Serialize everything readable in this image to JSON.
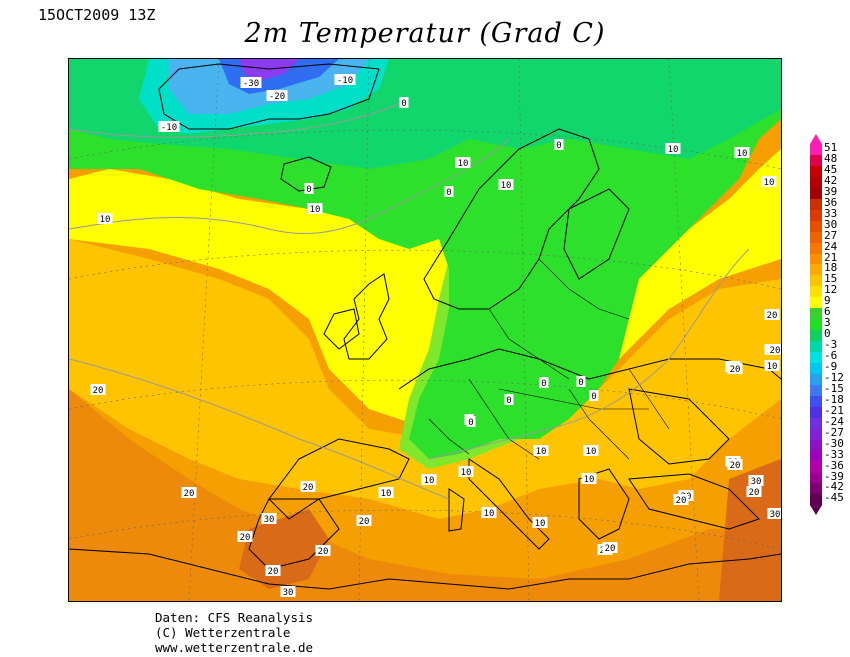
{
  "header": {
    "datetime": "15OCT2009 13Z",
    "title": "2m Temperatur (Grad C)"
  },
  "map": {
    "variable": "2m temperature",
    "unit": "Grad C",
    "colors": {
      "very_cold_purple": "#8c3cf0",
      "cold_blue": "#2f6df2",
      "light_blue": "#49b4f0",
      "cyan": "#00dfc8",
      "teal_green": "#10d66c",
      "green": "#2ce02c",
      "light_green": "#7fe82c",
      "yellow": "#ffff00",
      "yellow_orange": "#ffd400",
      "orange": "#ffb000",
      "dark_orange": "#f08a00",
      "red_orange": "#d86a18"
    },
    "contour_labels": [
      {
        "text": "-30"
      },
      {
        "text": "-20"
      },
      {
        "text": "-10"
      },
      {
        "text": "-10"
      },
      {
        "text": "0"
      },
      {
        "text": "0"
      },
      {
        "text": "0"
      },
      {
        "text": "10"
      },
      {
        "text": "10"
      },
      {
        "text": "10"
      },
      {
        "text": "10"
      },
      {
        "text": "10"
      },
      {
        "text": "0"
      },
      {
        "text": "10"
      },
      {
        "text": "0"
      },
      {
        "text": "0"
      },
      {
        "text": "0"
      },
      {
        "text": "0"
      },
      {
        "text": "0"
      },
      {
        "text": "0"
      },
      {
        "text": "20"
      },
      {
        "text": "20"
      },
      {
        "text": "20"
      },
      {
        "text": "10"
      },
      {
        "text": "10"
      },
      {
        "text": "10"
      },
      {
        "text": "10"
      },
      {
        "text": "10"
      },
      {
        "text": "10"
      },
      {
        "text": "10"
      },
      {
        "text": "20"
      },
      {
        "text": "20"
      },
      {
        "text": "20"
      },
      {
        "text": "20"
      },
      {
        "text": "20"
      },
      {
        "text": "30"
      },
      {
        "text": "20"
      },
      {
        "text": "20"
      },
      {
        "text": "30"
      },
      {
        "text": "20"
      },
      {
        "text": "20"
      },
      {
        "text": "20"
      },
      {
        "text": "20"
      },
      {
        "text": "20"
      },
      {
        "text": "30"
      },
      {
        "text": "30"
      },
      {
        "text": "20"
      },
      {
        "text": "20"
      },
      {
        "text": "20"
      },
      {
        "text": "10"
      },
      {
        "text": "20"
      },
      {
        "text": "10"
      },
      {
        "text": "10"
      }
    ]
  },
  "legend": {
    "levels": [
      "51",
      "48",
      "45",
      "42",
      "39",
      "36",
      "33",
      "30",
      "27",
      "24",
      "21",
      "18",
      "15",
      "12",
      "9",
      "6",
      "3",
      "0",
      "-3",
      "-6",
      "-9",
      "-12",
      "-15",
      "-18",
      "-21",
      "-24",
      "-27",
      "-30",
      "-33",
      "-36",
      "-39",
      "-42",
      "-45"
    ],
    "colors": [
      "#ff1eb4",
      "#e0004c",
      "#c80000",
      "#b40000",
      "#a00000",
      "#c83000",
      "#dc3c00",
      "#e65000",
      "#f06400",
      "#f57800",
      "#f99000",
      "#ffa800",
      "#ffc400",
      "#ffe000",
      "#ffff00",
      "#36d030",
      "#20e020",
      "#10d060",
      "#00d8a8",
      "#00e0e0",
      "#00c8f0",
      "#28a0f0",
      "#3c78f0",
      "#4050f0",
      "#5030e0",
      "#7030e0",
      "#8020d8",
      "#9010c8",
      "#a000b8",
      "#b000a8",
      "#9c0090",
      "#7c0070",
      "#600050"
    ]
  },
  "footer": {
    "line1": "Daten: CFS Reanalysis",
    "line2": "(C) Wetterzentrale",
    "line3": "www.wetterzentrale.de"
  }
}
